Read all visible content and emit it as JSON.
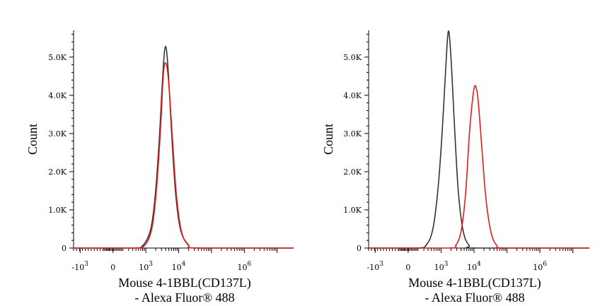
{
  "chart_data": [
    {
      "type": "line",
      "title": "",
      "xlabel_line1": "Mouse 4-1BBL(CD137L)",
      "xlabel_line2": "- Alexa Fluor® 488",
      "ylabel": "Count",
      "x_scale": "biexponential",
      "y_ticks": [
        {
          "value": 0,
          "label": "0"
        },
        {
          "value": 1000,
          "label": "1.0K"
        },
        {
          "value": 2000,
          "label": "2.0K"
        },
        {
          "value": 3000,
          "label": "3.0K"
        },
        {
          "value": 4000,
          "label": "4.0K"
        },
        {
          "value": 5000,
          "label": "5.0K"
        }
      ],
      "x_ticks": [
        {
          "base": "-10",
          "exp": "3",
          "label": "-10^3"
        },
        {
          "base": "0",
          "exp": "",
          "label": "0"
        },
        {
          "base": "10",
          "exp": "3",
          "label": "10^3"
        },
        {
          "base": "10",
          "exp": "4",
          "label": "10^4"
        },
        {
          "base": "10",
          "exp": "6",
          "label": "10^6"
        }
      ],
      "ylim": [
        0,
        5700
      ],
      "series": [
        {
          "color": "#333333",
          "points": [
            [
              -1.2,
              0
            ],
            [
              0.6,
              0
            ],
            [
              0.9,
              60
            ],
            [
              1.15,
              500
            ],
            [
              1.3,
              1500
            ],
            [
              1.42,
              3000
            ],
            [
              1.52,
              4600
            ],
            [
              1.6,
              5280
            ],
            [
              1.68,
              4650
            ],
            [
              1.78,
              3100
            ],
            [
              1.9,
              1500
            ],
            [
              2.05,
              500
            ],
            [
              2.3,
              80
            ],
            [
              2.6,
              0
            ],
            [
              5.5,
              0
            ]
          ]
        },
        {
          "color": "#e41a1c",
          "points": [
            [
              -1.2,
              0
            ],
            [
              0.6,
              0
            ],
            [
              0.95,
              60
            ],
            [
              1.18,
              500
            ],
            [
              1.32,
              1500
            ],
            [
              1.44,
              3000
            ],
            [
              1.53,
              4500
            ],
            [
              1.6,
              4850
            ],
            [
              1.69,
              4400
            ],
            [
              1.8,
              3000
            ],
            [
              1.93,
              1400
            ],
            [
              2.08,
              450
            ],
            [
              2.3,
              70
            ],
            [
              2.6,
              0
            ],
            [
              5.5,
              0
            ]
          ]
        }
      ]
    },
    {
      "type": "line",
      "title": "",
      "xlabel_line1": "Mouse 4-1BBL(CD137L)",
      "xlabel_line2": "- Alexa Fluor® 488",
      "ylabel": "Count",
      "x_scale": "biexponential",
      "y_ticks": [
        {
          "value": 0,
          "label": "0"
        },
        {
          "value": 1000,
          "label": "1.0K"
        },
        {
          "value": 2000,
          "label": "2.0K"
        },
        {
          "value": 3000,
          "label": "3.0K"
        },
        {
          "value": 4000,
          "label": "4.0K"
        },
        {
          "value": 5000,
          "label": "5.0K"
        }
      ],
      "x_ticks": [
        {
          "base": "-10",
          "exp": "3",
          "label": "-10^3"
        },
        {
          "base": "0",
          "exp": "",
          "label": "0"
        },
        {
          "base": "10",
          "exp": "3",
          "label": "10^3"
        },
        {
          "base": "10",
          "exp": "4",
          "label": "10^4"
        },
        {
          "base": "10",
          "exp": "6",
          "label": "10^6"
        }
      ],
      "ylim": [
        0,
        5700
      ],
      "series": [
        {
          "color": "#333333",
          "points": [
            [
              -1.2,
              0
            ],
            [
              0.25,
              0
            ],
            [
              0.55,
              80
            ],
            [
              0.75,
              500
            ],
            [
              0.9,
              1500
            ],
            [
              1.03,
              3000
            ],
            [
              1.14,
              4700
            ],
            [
              1.22,
              5680
            ],
            [
              1.3,
              5000
            ],
            [
              1.4,
              3300
            ],
            [
              1.52,
              1500
            ],
            [
              1.67,
              450
            ],
            [
              1.85,
              70
            ],
            [
              2.1,
              0
            ],
            [
              5.5,
              0
            ]
          ]
        },
        {
          "color": "#e41a1c",
          "points": [
            [
              -1.2,
              0
            ],
            [
              1.2,
              0
            ],
            [
              1.45,
              80
            ],
            [
              1.62,
              500
            ],
            [
              1.75,
              1500
            ],
            [
              1.86,
              3000
            ],
            [
              1.97,
              4000
            ],
            [
              2.04,
              4250
            ],
            [
              2.12,
              3900
            ],
            [
              2.23,
              2700
            ],
            [
              2.36,
              1300
            ],
            [
              2.52,
              400
            ],
            [
              2.7,
              60
            ],
            [
              2.95,
              0
            ],
            [
              5.5,
              0
            ]
          ]
        }
      ]
    }
  ]
}
